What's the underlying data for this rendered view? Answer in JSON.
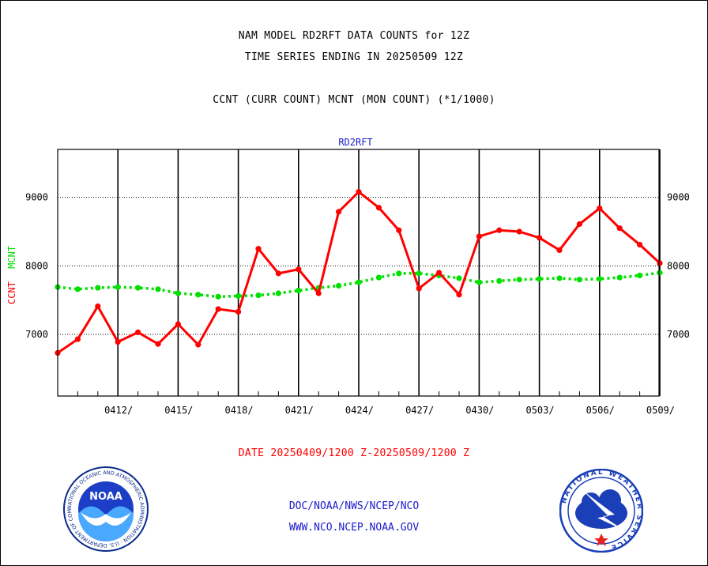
{
  "header": {
    "line1": "NAM MODEL RD2RFT DATA COUNTS for 12Z",
    "line2": "TIME SERIES ENDING IN 20250509 12Z",
    "line3": "CCNT (CURR COUNT) MCNT (MON COUNT) (*1/1000)"
  },
  "chart_data": {
    "type": "line",
    "title": "RD2RFT",
    "ylabel_ccnt": "CCNT",
    "ylabel_mcnt": "MCNT",
    "xlabel": "DATE 20250409/1200 Z-20250509/1200 Z",
    "x_tick_labels": [
      "0412/",
      "0415/",
      "0418/",
      "0421/",
      "0424/",
      "0427/",
      "0430/",
      "0503/",
      "0506/",
      "0509/"
    ],
    "y_tick_labels": [
      "7000",
      "8000",
      "9000"
    ],
    "ylim": [
      6100,
      9700
    ],
    "grid": true,
    "x_days": [
      0,
      1,
      2,
      3,
      4,
      5,
      6,
      7,
      8,
      9,
      10,
      11,
      12,
      13,
      14,
      15,
      16,
      17,
      18,
      19,
      20,
      21,
      22,
      23,
      24,
      25,
      26,
      27,
      28,
      29,
      30
    ],
    "series": [
      {
        "name": "CCNT",
        "color": "#ff0000",
        "values": [
          6730,
          6930,
          7410,
          6890,
          7030,
          6860,
          7150,
          6850,
          7370,
          7330,
          8250,
          7890,
          7950,
          7600,
          8790,
          9080,
          8850,
          8520,
          7670,
          7900,
          7580,
          8430,
          8520,
          8500,
          8410,
          8230,
          8610,
          8840,
          8550,
          8310,
          8040
        ]
      },
      {
        "name": "MCNT",
        "color": "#00e000",
        "values": [
          7690,
          7660,
          7680,
          7690,
          7680,
          7660,
          7600,
          7580,
          7550,
          7560,
          7570,
          7600,
          7640,
          7680,
          7710,
          7760,
          7830,
          7890,
          7890,
          7860,
          7820,
          7760,
          7780,
          7800,
          7810,
          7820,
          7800,
          7810,
          7830,
          7860,
          7900
        ]
      }
    ]
  },
  "footer": {
    "line1": "DOC/NOAA/NWS/NCEP/NCO",
    "line2": "WWW.NCO.NCEP.NOAA.GOV"
  },
  "logos": {
    "left": "noaa-logo",
    "left_text": "NOAA",
    "left_ring_text": "NATIONAL OCEANIC AND ATMOSPHERIC ADMINISTRATION · U.S. DEPARTMENT OF COMMERCE",
    "right": "nws-logo",
    "right_ring_text": "NATIONAL WEATHER SERVICE"
  },
  "colors": {
    "ccnt": "#ff0000",
    "mcnt": "#00e000",
    "title": "#1a1acc"
  }
}
